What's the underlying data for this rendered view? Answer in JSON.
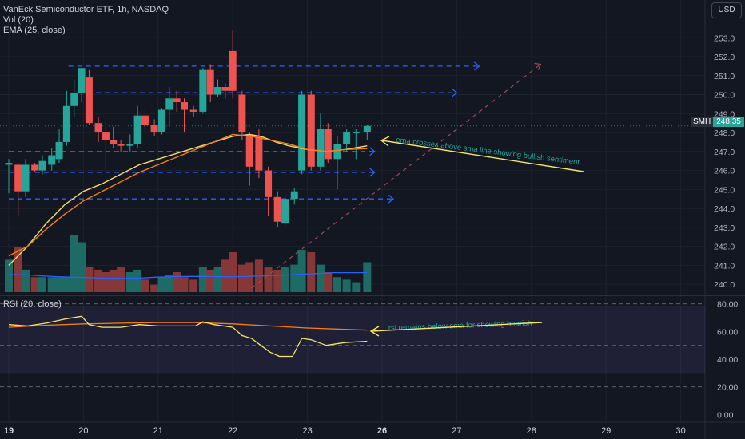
{
  "header": {
    "title": "VanEck Semiconductor ETF, 1h, NASDAQ",
    "vol_label": "Vol (20)",
    "ema_label": "EMA (25, close)",
    "rsi_label": "RSI (20, close)",
    "currency_button": "USD"
  },
  "price_tag": {
    "symbol": "SMH",
    "value": "248.35"
  },
  "colors": {
    "background": "#131722",
    "up": "#26a69a",
    "down": "#ef5350",
    "sma": "#f5d96a",
    "ema": "#f57f17",
    "vol_ma": "#2962ff",
    "dashed_levels": "#2962ff",
    "annotation_text": "#26a69a",
    "annotation_arrow": "#f5e663",
    "rsi_line": "#f5e663",
    "rsi_ma": "#f57f17"
  },
  "annotations": {
    "main": "ema crosses above sma line showing bullish sentiment",
    "rsi": "rsi remains below sma for showing bearish"
  },
  "chart_data": {
    "type": "candlestick",
    "x_unit": "day (hourly candles)",
    "x_tick_labels": [
      "19",
      "20",
      "21",
      "22",
      "23",
      "26",
      "27",
      "28",
      "29",
      "30"
    ],
    "x_tick_positions": [
      0,
      4,
      8,
      12,
      16,
      20,
      24,
      28,
      32,
      36
    ],
    "price_axis": {
      "range": [
        239.5,
        253.6
      ],
      "ticks": [
        240,
        241,
        242,
        243,
        244,
        245,
        246,
        247,
        248,
        249,
        250,
        251,
        252,
        253
      ]
    },
    "rsi_axis": {
      "range": [
        -5,
        85
      ],
      "ticks": [
        0,
        20,
        40,
        60,
        80
      ],
      "tick_labels": [
        "0.00",
        "20.00",
        "40.00",
        "60.00",
        "80.00"
      ],
      "band": [
        30,
        70
      ]
    },
    "candles": [
      {
        "t": 0.0,
        "o": 246.3,
        "h": 246.6,
        "l": 244.8,
        "c": 246.4
      },
      {
        "t": 0.5,
        "o": 246.3,
        "h": 246.4,
        "l": 243.6,
        "c": 244.9
      },
      {
        "t": 0.9,
        "o": 244.9,
        "h": 246.6,
        "l": 244.6,
        "c": 246.3
      },
      {
        "t": 1.4,
        "o": 246.3,
        "h": 246.4,
        "l": 245.9,
        "c": 246.0
      },
      {
        "t": 1.8,
        "o": 246.0,
        "h": 246.8,
        "l": 245.8,
        "c": 246.5
      },
      {
        "t": 2.3,
        "o": 246.3,
        "h": 247.2,
        "l": 246.0,
        "c": 246.8
      },
      {
        "t": 2.7,
        "o": 246.6,
        "h": 248.2,
        "l": 246.4,
        "c": 247.5
      },
      {
        "t": 3.1,
        "o": 247.5,
        "h": 250.2,
        "l": 247.3,
        "c": 249.4
      },
      {
        "t": 3.5,
        "o": 249.4,
        "h": 250.8,
        "l": 248.8,
        "c": 250.1
      },
      {
        "t": 3.9,
        "o": 250.1,
        "h": 251.4,
        "l": 249.6,
        "c": 251.4
      },
      {
        "t": 4.3,
        "o": 250.9,
        "h": 251.3,
        "l": 248.4,
        "c": 248.5
      },
      {
        "t": 4.8,
        "o": 248.5,
        "h": 248.8,
        "l": 247.5,
        "c": 248.0
      },
      {
        "t": 5.2,
        "o": 248.0,
        "h": 248.6,
        "l": 246.0,
        "c": 247.6
      },
      {
        "t": 5.6,
        "o": 247.6,
        "h": 248.3,
        "l": 247.2,
        "c": 247.4
      },
      {
        "t": 6.0,
        "o": 247.4,
        "h": 247.6,
        "l": 247.0,
        "c": 247.3
      },
      {
        "t": 6.5,
        "o": 247.3,
        "h": 247.9,
        "l": 247.0,
        "c": 247.4
      },
      {
        "t": 6.9,
        "o": 247.4,
        "h": 249.4,
        "l": 247.2,
        "c": 248.9
      },
      {
        "t": 7.3,
        "o": 248.9,
        "h": 249.2,
        "l": 248.0,
        "c": 248.4
      },
      {
        "t": 7.8,
        "o": 248.4,
        "h": 248.7,
        "l": 247.8,
        "c": 248.0
      },
      {
        "t": 8.2,
        "o": 248.0,
        "h": 249.3,
        "l": 247.9,
        "c": 249.2
      },
      {
        "t": 8.6,
        "o": 249.2,
        "h": 250.4,
        "l": 248.4,
        "c": 249.8
      },
      {
        "t": 9.0,
        "o": 249.8,
        "h": 250.2,
        "l": 249.1,
        "c": 249.6
      },
      {
        "t": 9.4,
        "o": 249.6,
        "h": 249.8,
        "l": 248.0,
        "c": 249.2
      },
      {
        "t": 9.9,
        "o": 249.2,
        "h": 249.4,
        "l": 248.8,
        "c": 249.1
      },
      {
        "t": 10.4,
        "o": 249.1,
        "h": 251.4,
        "l": 249.0,
        "c": 251.3
      },
      {
        "t": 10.8,
        "o": 251.3,
        "h": 251.6,
        "l": 249.6,
        "c": 250.0
      },
      {
        "t": 11.2,
        "o": 250.0,
        "h": 250.8,
        "l": 249.9,
        "c": 250.4
      },
      {
        "t": 11.6,
        "o": 250.4,
        "h": 250.6,
        "l": 249.8,
        "c": 250.2
      },
      {
        "t": 12.0,
        "o": 252.3,
        "h": 253.4,
        "l": 249.8,
        "c": 250.2
      },
      {
        "t": 12.5,
        "o": 250.0,
        "h": 250.2,
        "l": 247.6,
        "c": 248.0
      },
      {
        "t": 12.9,
        "o": 247.9,
        "h": 248.0,
        "l": 245.2,
        "c": 246.2
      },
      {
        "t": 13.4,
        "o": 247.8,
        "h": 248.2,
        "l": 245.6,
        "c": 246.0
      },
      {
        "t": 13.9,
        "o": 246.0,
        "h": 246.2,
        "l": 243.6,
        "c": 244.6
      },
      {
        "t": 14.4,
        "o": 244.6,
        "h": 244.9,
        "l": 243.0,
        "c": 243.3
      },
      {
        "t": 14.8,
        "o": 243.2,
        "h": 244.8,
        "l": 243.0,
        "c": 244.5
      },
      {
        "t": 15.3,
        "o": 244.5,
        "h": 245.1,
        "l": 244.2,
        "c": 244.9
      },
      {
        "t": 15.7,
        "o": 246.0,
        "h": 250.2,
        "l": 245.8,
        "c": 250.0
      },
      {
        "t": 16.2,
        "o": 250.0,
        "h": 250.2,
        "l": 246.0,
        "c": 246.2
      },
      {
        "t": 16.7,
        "o": 246.2,
        "h": 249.0,
        "l": 246.0,
        "c": 248.2
      },
      {
        "t": 17.1,
        "o": 248.2,
        "h": 248.5,
        "l": 246.4,
        "c": 246.6
      },
      {
        "t": 17.6,
        "o": 246.6,
        "h": 247.8,
        "l": 245.0,
        "c": 247.4
      },
      {
        "t": 18.1,
        "o": 247.4,
        "h": 248.2,
        "l": 247.0,
        "c": 248.0
      },
      {
        "t": 18.6,
        "o": 248.0,
        "h": 248.2,
        "l": 246.6,
        "c": 248.0
      },
      {
        "t": 19.2,
        "o": 248.0,
        "h": 248.4,
        "l": 247.6,
        "c": 248.35
      }
    ],
    "sma_line": [
      {
        "t": 0.0,
        "v": 241.0
      },
      {
        "t": 1.0,
        "v": 242.0
      },
      {
        "t": 2.0,
        "v": 243.2
      },
      {
        "t": 3.0,
        "v": 244.2
      },
      {
        "t": 4.0,
        "v": 244.9
      },
      {
        "t": 5.0,
        "v": 245.3
      },
      {
        "t": 6.0,
        "v": 245.8
      },
      {
        "t": 7.0,
        "v": 246.3
      },
      {
        "t": 8.0,
        "v": 246.6
      },
      {
        "t": 9.0,
        "v": 246.9
      },
      {
        "t": 10.0,
        "v": 247.2
      },
      {
        "t": 11.0,
        "v": 247.5
      },
      {
        "t": 12.0,
        "v": 247.8
      },
      {
        "t": 12.9,
        "v": 247.9
      },
      {
        "t": 13.5,
        "v": 247.8
      },
      {
        "t": 14.3,
        "v": 247.5
      },
      {
        "t": 15.0,
        "v": 247.3
      },
      {
        "t": 16.0,
        "v": 247.1
      },
      {
        "t": 17.0,
        "v": 247.0
      },
      {
        "t": 18.0,
        "v": 247.1
      },
      {
        "t": 19.2,
        "v": 247.3
      }
    ],
    "ema_line": [
      {
        "t": 0.0,
        "v": 241.5
      },
      {
        "t": 1.0,
        "v": 242.0
      },
      {
        "t": 2.0,
        "v": 242.9
      },
      {
        "t": 3.0,
        "v": 243.7
      },
      {
        "t": 4.0,
        "v": 244.4
      },
      {
        "t": 5.0,
        "v": 244.9
      },
      {
        "t": 6.0,
        "v": 245.4
      },
      {
        "t": 7.0,
        "v": 245.9
      },
      {
        "t": 8.0,
        "v": 246.3
      },
      {
        "t": 9.0,
        "v": 246.7
      },
      {
        "t": 10.0,
        "v": 247.1
      },
      {
        "t": 11.0,
        "v": 247.5
      },
      {
        "t": 12.0,
        "v": 247.9
      },
      {
        "t": 13.0,
        "v": 247.8
      },
      {
        "t": 14.0,
        "v": 247.6
      },
      {
        "t": 15.0,
        "v": 247.4
      },
      {
        "t": 16.0,
        "v": 247.1
      },
      {
        "t": 17.0,
        "v": 247.0
      },
      {
        "t": 18.0,
        "v": 247.1
      },
      {
        "t": 19.2,
        "v": 247.15
      }
    ],
    "volume": {
      "range": [
        0,
        3.2
      ],
      "bars": [
        1.3,
        1.8,
        0.9,
        0.6,
        0.6,
        0.6,
        0.6,
        0.6,
        2.3,
        2.0,
        1.0,
        0.9,
        0.8,
        0.9,
        1.0,
        0.8,
        0.9,
        0.5,
        0.3,
        0.6,
        0.7,
        0.8,
        0.6,
        0.5,
        1.0,
        0.9,
        1.0,
        1.3,
        1.6,
        1.1,
        1.2,
        1.3,
        1.0,
        0.9,
        1.0,
        1.1,
        1.7,
        1.6,
        1.1,
        0.8,
        0.6,
        0.5,
        0.4,
        1.2
      ],
      "ma": [
        0.7,
        0.7,
        0.65,
        0.62,
        0.6,
        0.58,
        0.56,
        0.55,
        0.56,
        0.6,
        0.62,
        0.63,
        0.63,
        0.62,
        0.62,
        0.64,
        0.66,
        0.68,
        0.72,
        0.75,
        0.78,
        0.78,
        0.78
      ]
    },
    "rsi": [
      {
        "t": 0.0,
        "v": 65
      },
      {
        "t": 1.0,
        "v": 64
      },
      {
        "t": 2.0,
        "v": 66
      },
      {
        "t": 3.0,
        "v": 69
      },
      {
        "t": 3.9,
        "v": 71
      },
      {
        "t": 4.3,
        "v": 65
      },
      {
        "t": 5.0,
        "v": 63
      },
      {
        "t": 6.0,
        "v": 63
      },
      {
        "t": 7.0,
        "v": 65
      },
      {
        "t": 8.0,
        "v": 64
      },
      {
        "t": 9.0,
        "v": 64
      },
      {
        "t": 10.0,
        "v": 64
      },
      {
        "t": 10.4,
        "v": 67
      },
      {
        "t": 11.0,
        "v": 65
      },
      {
        "t": 12.0,
        "v": 63
      },
      {
        "t": 12.5,
        "v": 57
      },
      {
        "t": 13.0,
        "v": 55
      },
      {
        "t": 13.5,
        "v": 50
      },
      {
        "t": 14.0,
        "v": 45
      },
      {
        "t": 14.5,
        "v": 42
      },
      {
        "t": 15.2,
        "v": 42
      },
      {
        "t": 15.7,
        "v": 55
      },
      {
        "t": 16.2,
        "v": 54
      },
      {
        "t": 17.0,
        "v": 50
      },
      {
        "t": 18.0,
        "v": 52
      },
      {
        "t": 19.2,
        "v": 53
      }
    ],
    "rsi_ma": [
      {
        "t": 0.0,
        "v": 63
      },
      {
        "t": 2.0,
        "v": 64.5
      },
      {
        "t": 4.0,
        "v": 65.5
      },
      {
        "t": 6.0,
        "v": 66
      },
      {
        "t": 8.0,
        "v": 66.5
      },
      {
        "t": 10.0,
        "v": 66.5
      },
      {
        "t": 12.0,
        "v": 65.5
      },
      {
        "t": 14.0,
        "v": 64
      },
      {
        "t": 16.0,
        "v": 62.5
      },
      {
        "t": 18.0,
        "v": 61.5
      },
      {
        "t": 19.2,
        "v": 61
      }
    ],
    "dashed_levels": [
      {
        "price": 251.5,
        "t_from": 3.2,
        "t_to": 25.2
      },
      {
        "price": 250.1,
        "t_from": 4.2,
        "t_to": 24.0
      },
      {
        "price": 247.0,
        "t_from": 0.0,
        "t_to": 19.6
      },
      {
        "price": 245.9,
        "t_from": 0.0,
        "t_to": 19.6
      },
      {
        "price": 244.5,
        "t_from": 0.0,
        "t_to": 20.6
      }
    ],
    "trend_line": {
      "from": {
        "t": 13.0,
        "v": 239.8
      },
      "to": {
        "t": 28.5,
        "v": 251.6
      }
    },
    "grid": true
  }
}
